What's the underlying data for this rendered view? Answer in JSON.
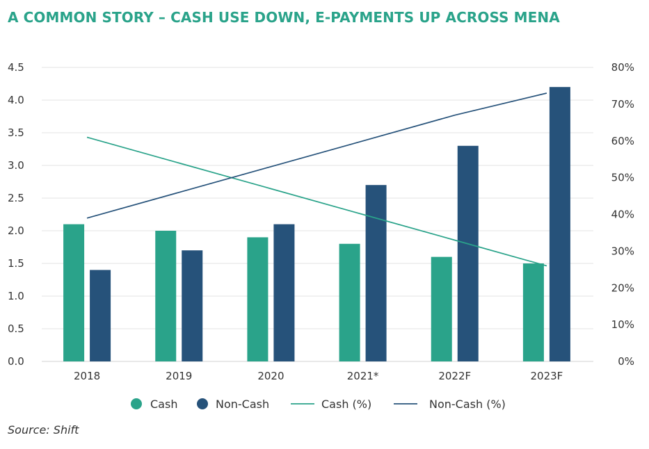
{
  "title": "A COMMON STORY – CASH USE DOWN, E-PAYMENTS UP ACROSS MENA",
  "source": "Source: Shift",
  "colors": {
    "cash": "#2aa38a",
    "noncash": "#26527a",
    "title": "#2aa38a",
    "grid": "#e3e3e3"
  },
  "chart_data": {
    "type": "bar",
    "categories": [
      "2018",
      "2019",
      "2020",
      "2021*",
      "2022F",
      "2023F"
    ],
    "series": [
      {
        "name": "Cash",
        "type": "bar",
        "axis": "left",
        "values": [
          2.1,
          2.0,
          1.9,
          1.8,
          1.6,
          1.5
        ]
      },
      {
        "name": "Non-Cash",
        "type": "bar",
        "axis": "left",
        "values": [
          1.4,
          1.7,
          2.1,
          2.7,
          3.3,
          4.2
        ]
      },
      {
        "name": "Cash (%)",
        "type": "line",
        "axis": "right",
        "values": [
          61,
          54,
          47,
          40,
          33,
          26
        ]
      },
      {
        "name": "Non-Cash (%)",
        "type": "line",
        "axis": "right",
        "values": [
          39,
          46,
          53,
          60,
          67,
          73
        ]
      }
    ],
    "ylim": [
      0,
      4.5
    ],
    "yticks": [
      "0.0",
      "0.5",
      "1.0",
      "1.5",
      "2.0",
      "2.5",
      "3.0",
      "3.5",
      "4.0",
      "4.5"
    ],
    "y2lim": [
      0,
      80
    ],
    "y2ticks": [
      "0%",
      "10%",
      "20%",
      "30%",
      "40%",
      "50%",
      "60%",
      "70%",
      "80%"
    ],
    "grid": true,
    "legend_position": "bottom"
  }
}
